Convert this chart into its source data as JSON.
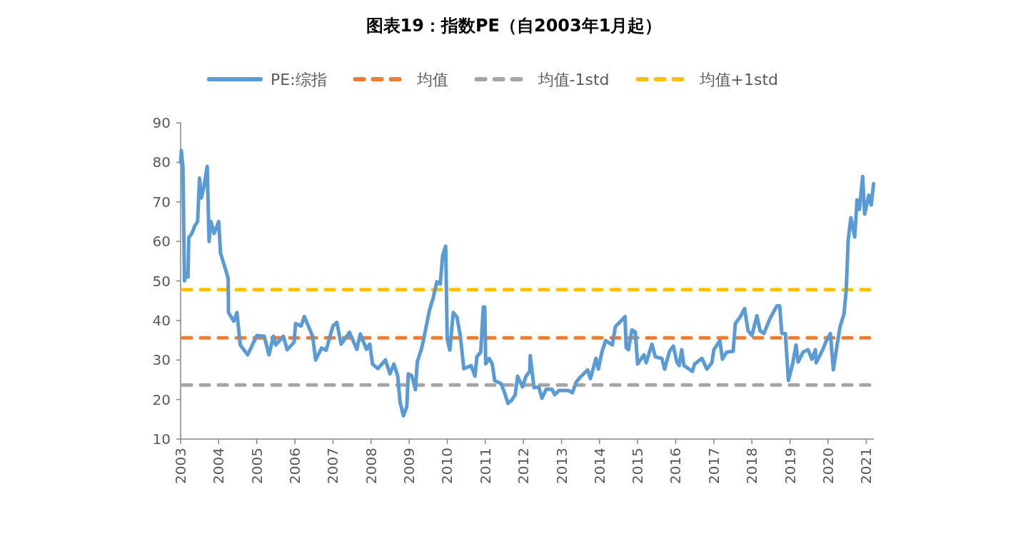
{
  "chart_data": {
    "type": "line",
    "title": "图表19：指数PE（自2003年1月起）",
    "x": [
      "2003-01-01",
      "2003-01-08",
      "2003-01-23",
      "2003-02-07",
      "2003-02-25",
      "2003-03-13",
      "2003-03-20",
      "2003-04-19",
      "2003-05-18",
      "2003-06-13",
      "2003-07-01",
      "2003-07-19",
      "2003-08-14",
      "2003-09-13",
      "2003-10-01",
      "2003-10-19",
      "2003-11-18",
      "2004-01-01",
      "2004-01-19",
      "2004-03-13",
      "2004-04-01",
      "2004-04-04",
      "2004-05-25",
      "2004-06-24",
      "2004-07-26",
      "2004-10-05",
      "2005-01-01",
      "2005-03-13",
      "2005-04-28",
      "2005-06-09",
      "2005-07-01",
      "2005-09-13",
      "2005-10-19",
      "2005-12-24",
      "2006-01-08",
      "2006-03-02",
      "2006-04-01",
      "2006-05-10",
      "2006-06-20",
      "2006-07-19",
      "2006-09-13",
      "2006-10-28",
      "2006-11-18",
      "2007-01-01",
      "2007-02-07",
      "2007-03-20",
      "2007-06-09",
      "2007-08-18",
      "2007-09-20",
      "2007-11-18",
      "2007-12-20",
      "2008-01-15",
      "2008-03-07",
      "2008-05-18",
      "2008-07-01",
      "2008-08-07",
      "2008-09-13",
      "2008-10-05",
      "2008-11-07",
      "2008-12-09",
      "2008-12-24",
      "2009-01-26",
      "2009-03-02",
      "2009-03-20",
      "2009-04-26",
      "2009-05-18",
      "2009-07-15",
      "2009-08-18",
      "2009-09-24",
      "2009-10-26",
      "2009-11-18",
      "2009-12-17",
      "2010-01-01",
      "2010-01-26",
      "2010-02-28",
      "2010-04-05",
      "2010-05-07",
      "2010-06-09",
      "2010-08-18",
      "2010-09-24",
      "2010-10-12",
      "2010-11-18",
      "2010-12-13",
      "2010-12-27",
      "2011-01-05",
      "2011-02-07",
      "2011-03-09",
      "2011-04-01",
      "2011-06-02",
      "2011-07-05",
      "2011-08-07",
      "2011-09-13",
      "2011-10-15",
      "2011-11-07",
      "2011-12-24",
      "2012-01-26",
      "2012-03-02",
      "2012-03-07",
      "2012-04-12",
      "2012-05-28",
      "2012-06-27",
      "2012-08-07",
      "2012-10-01",
      "2012-10-28",
      "2012-12-09",
      "2013-03-07",
      "2013-04-15",
      "2013-05-21",
      "2013-07-01",
      "2013-09-09",
      "2013-10-05",
      "2013-11-28",
      "2013-12-20",
      "2014-01-23",
      "2014-02-28",
      "2014-05-03",
      "2014-06-02",
      "2014-08-11",
      "2014-09-02",
      "2014-09-13",
      "2014-10-05",
      "2014-11-07",
      "2014-12-09",
      "2015-01-01",
      "2015-03-02",
      "2015-03-24",
      "2015-05-18",
      "2015-06-20",
      "2015-08-21",
      "2015-09-17",
      "2015-11-03",
      "2015-12-09",
      "2016-01-12",
      "2016-02-03",
      "2016-02-28",
      "2016-03-20",
      "2016-06-09",
      "2016-07-01",
      "2016-09-09",
      "2016-10-26",
      "2016-12-13",
      "2017-01-01",
      "2017-02-28",
      "2017-03-24",
      "2017-05-03",
      "2017-07-05",
      "2017-07-26",
      "2017-09-13",
      "2017-10-23",
      "2017-11-25",
      "2018-01-01",
      "2018-02-18",
      "2018-03-20",
      "2018-04-26",
      "2018-06-20",
      "2018-08-28",
      "2018-09-24",
      "2018-10-15",
      "2018-11-18",
      "2018-12-17",
      "2019-01-26",
      "2019-02-28",
      "2019-03-20",
      "2019-05-07",
      "2019-06-24",
      "2019-07-30",
      "2019-09-02",
      "2019-09-09",
      "2019-11-11",
      "2019-12-13",
      "2020-01-23",
      "2020-02-21",
      "2020-03-24",
      "2020-04-26",
      "2020-06-02",
      "2020-06-24",
      "2020-07-12",
      "2020-08-07",
      "2020-09-13",
      "2020-10-05",
      "2020-10-28",
      "2020-11-28",
      "2020-12-17",
      "2021-01-26",
      "2021-02-18",
      "2021-03-13"
    ],
    "series": [
      {
        "name": "PE:综指",
        "color": "#5b9bd5",
        "values": [
          80,
          83,
          79,
          50,
          52,
          51,
          61,
          62,
          64,
          65,
          76,
          71,
          74,
          79,
          60,
          65,
          62,
          65,
          57,
          52.4,
          50.6,
          42,
          39.8,
          42,
          33.8,
          31.3,
          36.2,
          36,
          31.3,
          36,
          33.8,
          36,
          32.6,
          34.5,
          39.2,
          38.6,
          41,
          38.6,
          36,
          30,
          33,
          32.5,
          34.5,
          38.6,
          39.5,
          34,
          37,
          32.7,
          36.6,
          32.7,
          34,
          29,
          27.8,
          30,
          26.5,
          29,
          26,
          19.4,
          15.9,
          18.2,
          26.5,
          26,
          22.5,
          29.6,
          32.5,
          35,
          42.6,
          45.6,
          49.8,
          49.2,
          56.4,
          58.8,
          35.4,
          32.5,
          42,
          40.8,
          36,
          27.8,
          28.6,
          25.9,
          30.8,
          32,
          43.4,
          43.4,
          29,
          30.4,
          29,
          24.8,
          24,
          21.7,
          19,
          19.9,
          21.2,
          25.9,
          23.2,
          25.9,
          27.1,
          31.1,
          23,
          23.2,
          20.3,
          22.6,
          22.6,
          21.2,
          22.3,
          22.3,
          21.7,
          24.4,
          25.7,
          27.5,
          25.3,
          30.4,
          27.7,
          32,
          34.9,
          33.8,
          38.5,
          40.3,
          41,
          33.1,
          32.6,
          37.6,
          37.1,
          29,
          31.3,
          29.3,
          34,
          30.8,
          30.4,
          27.7,
          32.2,
          33.5,
          29.5,
          28.6,
          32.6,
          28.6,
          27.1,
          29,
          30.4,
          27.7,
          29.3,
          32.6,
          34.9,
          30.2,
          32,
          32.2,
          39.2,
          41,
          43,
          37.4,
          36.2,
          41.2,
          37.4,
          36.7,
          40.3,
          43.7,
          43.7,
          36.7,
          36.7,
          24.8,
          29,
          33.8,
          29.5,
          32,
          32.6,
          30.2,
          32.6,
          29.3,
          32.6,
          34.7,
          36.7,
          27.5,
          33.1,
          38.5,
          41.6,
          47.9,
          60.2,
          66,
          61.1,
          70.5,
          68.1,
          76.4,
          66.9,
          71.7,
          69.2,
          74.6
        ]
      }
    ],
    "ref_lines": [
      {
        "axis": "y",
        "value": 35.6,
        "label": "均值",
        "color": "#ed7d31",
        "line_style": "dashed"
      },
      {
        "axis": "y",
        "value": 23.7,
        "label": "均值-1std",
        "color": "#a5a5a5",
        "line_style": "dashed"
      },
      {
        "axis": "y",
        "value": 47.8,
        "label": "均值+1std",
        "color": "#ffc000",
        "line_style": "dashed"
      }
    ],
    "xlim": [
      "2003-01-01",
      "2021-03-15"
    ],
    "xticks": [
      "2003",
      "2004",
      "2005",
      "2006",
      "2007",
      "2008",
      "2009",
      "2010",
      "2011",
      "2012",
      "2013",
      "2014",
      "2015",
      "2016",
      "2017",
      "2018",
      "2019",
      "2020",
      "2021"
    ],
    "ylim": [
      10,
      90
    ],
    "yticks": [
      10,
      20,
      30,
      40,
      50,
      60,
      70,
      80,
      90
    ],
    "legend": "top",
    "grid": false,
    "marker": "none",
    "line_style": "solid"
  }
}
